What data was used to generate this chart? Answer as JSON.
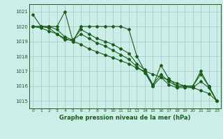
{
  "title": "Graphe pression niveau de la mer (hPa)",
  "bg_color": "#cceee8",
  "grid_color": "#aacccc",
  "line_color": "#1a5c1a",
  "ylim": [
    1014.5,
    1021.5
  ],
  "xlim": [
    -0.5,
    23.5
  ],
  "yticks": [
    1015,
    1016,
    1017,
    1018,
    1019,
    1020,
    1021
  ],
  "xticks": [
    0,
    1,
    2,
    3,
    4,
    5,
    6,
    7,
    8,
    9,
    10,
    11,
    12,
    13,
    14,
    15,
    16,
    17,
    18,
    19,
    20,
    21,
    22,
    23
  ],
  "series": [
    [
      1020.8,
      1020.0,
      1020.0,
      1020.0,
      1021.0,
      1019.0,
      1020.0,
      1020.0,
      1020.0,
      1020.0,
      1020.0,
      1020.0,
      1019.8,
      1018.0,
      1017.0,
      1016.0,
      1017.4,
      1016.5,
      1016.0,
      1016.0,
      1016.0,
      1017.0,
      1016.0,
      1015.0
    ],
    [
      1020.0,
      1020.0,
      1020.0,
      1019.8,
      1019.3,
      1019.1,
      1019.8,
      1019.5,
      1019.2,
      1019.0,
      1018.8,
      1018.5,
      1018.2,
      1017.5,
      1017.1,
      1016.1,
      1016.8,
      1016.3,
      1016.0,
      1016.0,
      1016.0,
      1016.8,
      1016.0,
      1015.0
    ],
    [
      1020.0,
      1020.0,
      1019.9,
      1019.5,
      1019.1,
      1019.1,
      1019.5,
      1019.2,
      1018.9,
      1018.7,
      1018.4,
      1018.1,
      1017.8,
      1017.3,
      1016.9,
      1016.0,
      1016.6,
      1016.1,
      1015.9,
      1015.9,
      1015.9,
      1016.3,
      1015.9,
      1015.0
    ],
    [
      1020.0,
      1019.9,
      1019.7,
      1019.5,
      1019.2,
      1019.0,
      1018.8,
      1018.5,
      1018.3,
      1018.1,
      1017.9,
      1017.7,
      1017.5,
      1017.2,
      1017.0,
      1016.8,
      1016.6,
      1016.4,
      1016.2,
      1016.0,
      1015.9,
      1015.7,
      1015.5,
      1015.0
    ]
  ]
}
